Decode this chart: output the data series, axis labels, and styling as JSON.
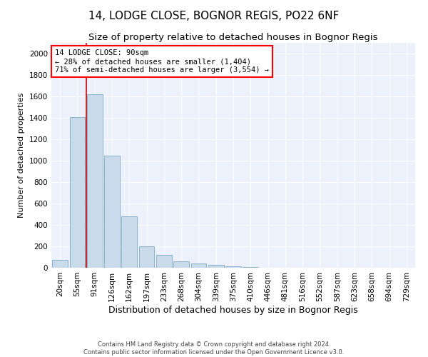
{
  "title": "14, LODGE CLOSE, BOGNOR REGIS, PO22 6NF",
  "subtitle": "Size of property relative to detached houses in Bognor Regis",
  "xlabel": "Distribution of detached houses by size in Bognor Regis",
  "ylabel": "Number of detached properties",
  "footer_line1": "Contains HM Land Registry data © Crown copyright and database right 2024.",
  "footer_line2": "Contains public sector information licensed under the Open Government Licence v3.0.",
  "annotation_line1": "14 LODGE CLOSE: 90sqm",
  "annotation_line2": "← 28% of detached houses are smaller (1,404)",
  "annotation_line3": "71% of semi-detached houses are larger (3,554) →",
  "bar_color": "#c9daea",
  "bar_edge_color": "#7aaac8",
  "vline_color": "#cc0000",
  "bg_color": "#edf1fb",
  "grid_color": "#ffffff",
  "categories": [
    "20sqm",
    "55sqm",
    "91sqm",
    "126sqm",
    "162sqm",
    "197sqm",
    "233sqm",
    "268sqm",
    "304sqm",
    "339sqm",
    "375sqm",
    "410sqm",
    "446sqm",
    "481sqm",
    "516sqm",
    "552sqm",
    "587sqm",
    "623sqm",
    "658sqm",
    "694sqm",
    "729sqm"
  ],
  "values": [
    75,
    1410,
    1620,
    1050,
    480,
    200,
    120,
    60,
    40,
    25,
    15,
    8,
    3,
    1,
    0,
    0,
    0,
    0,
    0,
    0,
    0
  ],
  "vline_x_pos": 1.5,
  "ylim": [
    0,
    2100
  ],
  "yticks": [
    0,
    200,
    400,
    600,
    800,
    1000,
    1200,
    1400,
    1600,
    1800,
    2000
  ],
  "title_fontsize": 11,
  "subtitle_fontsize": 9.5,
  "xlabel_fontsize": 9,
  "ylabel_fontsize": 8,
  "tick_fontsize": 7.5,
  "annotation_fontsize": 7.5,
  "footer_fontsize": 6
}
